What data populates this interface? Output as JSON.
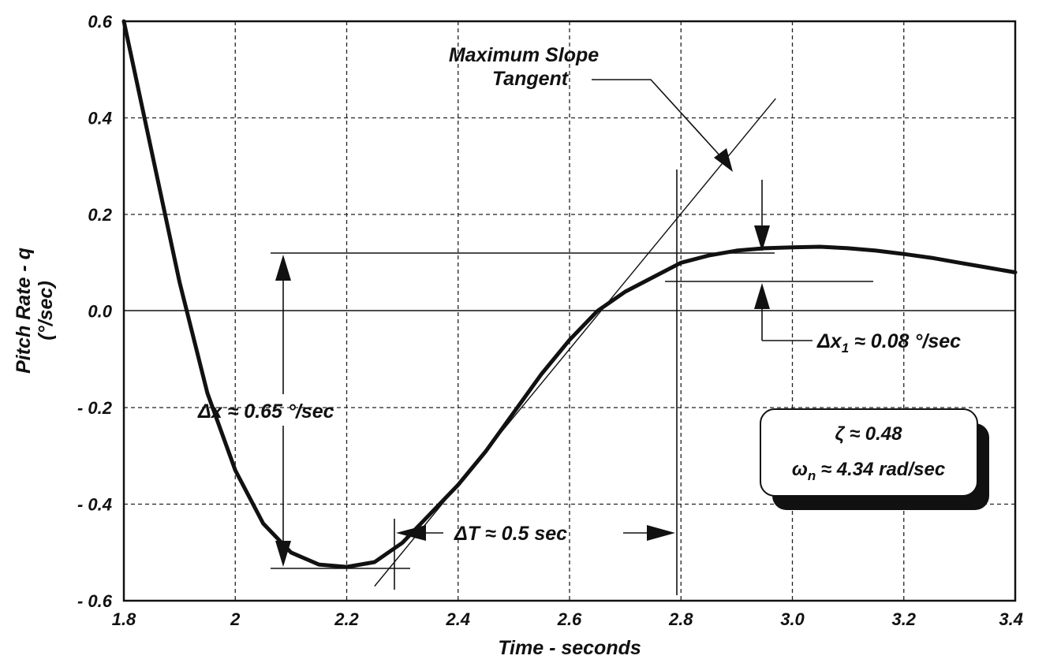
{
  "chart_data": {
    "type": "line",
    "xlabel": "Time - seconds",
    "ylabel_line1": "Pitch Rate - q",
    "ylabel_line2": "(°/sec)",
    "xlim": [
      1.8,
      3.4
    ],
    "ylim": [
      -0.6,
      0.6
    ],
    "grid": true,
    "x_ticks": [
      1.8,
      2.0,
      2.2,
      2.4,
      2.6,
      2.8,
      3.0,
      3.2,
      3.4
    ],
    "x_tick_labels": [
      "1.8",
      "2",
      "2.2",
      "2.4",
      "2.6",
      "2.8",
      "3.0",
      "3.2",
      "3.4"
    ],
    "y_ticks": [
      0.6,
      0.4,
      0.2,
      0.0,
      -0.2,
      -0.4,
      -0.6
    ],
    "y_tick_labels": [
      "0.6",
      "0.4",
      "0.2",
      "0.0",
      "- 0.2",
      "- 0.4",
      "- 0.6"
    ],
    "series": [
      {
        "x": [
          1.8,
          1.85,
          1.9,
          1.95,
          2.0,
          2.05,
          2.1,
          2.15,
          2.2,
          2.25,
          2.3,
          2.35,
          2.4,
          2.45,
          2.5,
          2.55,
          2.6,
          2.65,
          2.7,
          2.75,
          2.8,
          2.85,
          2.9,
          2.95,
          3.0,
          3.05,
          3.1,
          3.15,
          3.2,
          3.25,
          3.3,
          3.35,
          3.4
        ],
        "y": [
          0.6,
          0.33,
          0.06,
          -0.17,
          -0.33,
          -0.44,
          -0.5,
          -0.525,
          -0.53,
          -0.52,
          -0.48,
          -0.42,
          -0.36,
          -0.29,
          -0.21,
          -0.13,
          -0.06,
          0.0,
          0.04,
          0.07,
          0.1,
          0.115,
          0.125,
          0.13,
          0.132,
          0.133,
          0.13,
          0.125,
          0.118,
          0.11,
          0.1,
          0.09,
          0.08
        ]
      }
    ],
    "tangent_line": {
      "x": [
        2.25,
        2.97
      ],
      "y": [
        -0.57,
        0.44
      ]
    },
    "annotations": {
      "max_slope_line1": "Maximum Slope",
      "max_slope_line2": "Tangent",
      "delta_x": "Δx ≈ 0.65 °/sec",
      "delta_x1_prefix": "Δx",
      "delta_x1_sub": "1",
      "delta_x1_value": " ≈ 0.08 °/sec",
      "delta_t": "ΔT ≈ 0.5 sec",
      "zeta": "ζ ≈ 0.48",
      "omega_symbol": "ω",
      "omega_sub": "n",
      "omega_value": " ≈ 4.34 rad/sec"
    }
  }
}
